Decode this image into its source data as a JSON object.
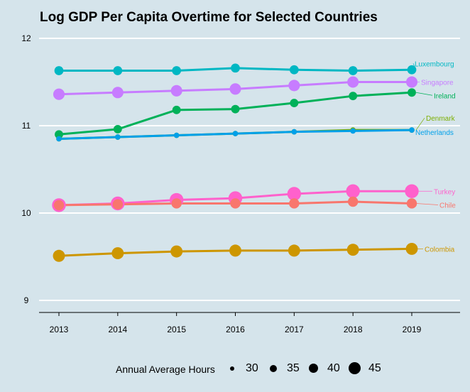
{
  "chart_data": {
    "type": "line",
    "title": "Log GDP Per Capita Overtime for Selected Countries",
    "xlabel": "",
    "ylabel": "",
    "x": [
      "2013",
      "2014",
      "2015",
      "2016",
      "2017",
      "2018",
      "2019"
    ],
    "xlim": [
      2013,
      2019
    ],
    "ylim": [
      9,
      12
    ],
    "yticks": [
      "9",
      "10",
      "11",
      "12"
    ],
    "grid": true,
    "series": [
      {
        "name": "Luxembourg",
        "color": "#00b7c3",
        "values": [
          11.63,
          11.63,
          11.63,
          11.66,
          11.64,
          11.63,
          11.64
        ],
        "sizes": [
          38,
          38,
          38,
          38,
          38,
          38,
          38
        ]
      },
      {
        "name": "Singapore",
        "color": "#c77cff",
        "values": [
          11.36,
          11.38,
          11.4,
          11.42,
          11.46,
          11.5,
          11.5
        ],
        "sizes": [
          42,
          42,
          42,
          42,
          42,
          42,
          42
        ]
      },
      {
        "name": "Ireland",
        "color": "#00b159",
        "values": [
          10.9,
          10.96,
          11.18,
          11.19,
          11.26,
          11.34,
          11.38
        ],
        "sizes": [
          37,
          37,
          37,
          37,
          37,
          37,
          37
        ]
      },
      {
        "name": "Denmark",
        "color": "#7cae00",
        "values": [
          10.85,
          10.87,
          10.89,
          10.91,
          10.93,
          10.95,
          10.95
        ],
        "sizes": [
          32,
          32,
          32,
          32,
          32,
          32,
          32
        ]
      },
      {
        "name": "Netherlands",
        "color": "#00a0e9",
        "values": [
          10.85,
          10.87,
          10.89,
          10.91,
          10.93,
          10.94,
          10.95
        ],
        "sizes": [
          32,
          32,
          32,
          32,
          32,
          32,
          32
        ]
      },
      {
        "name": "Turkey",
        "color": "#ff61cc",
        "values": [
          10.09,
          10.11,
          10.15,
          10.17,
          10.22,
          10.25,
          10.25
        ],
        "sizes": [
          46,
          46,
          46,
          46,
          46,
          46,
          46
        ]
      },
      {
        "name": "Chile",
        "color": "#f8766d",
        "values": [
          10.09,
          10.1,
          10.11,
          10.11,
          10.11,
          10.13,
          10.11
        ],
        "sizes": [
          40,
          40,
          40,
          40,
          40,
          40,
          40
        ]
      },
      {
        "name": "Colombia",
        "color": "#cd9600",
        "values": [
          9.51,
          9.54,
          9.56,
          9.57,
          9.57,
          9.58,
          9.59
        ],
        "sizes": [
          43,
          43,
          43,
          43,
          43,
          43,
          43
        ]
      }
    ],
    "legend": {
      "title": "Annual Average Hours",
      "placement": "bottom",
      "items": [
        "30",
        "35",
        "40",
        "45"
      ]
    }
  }
}
